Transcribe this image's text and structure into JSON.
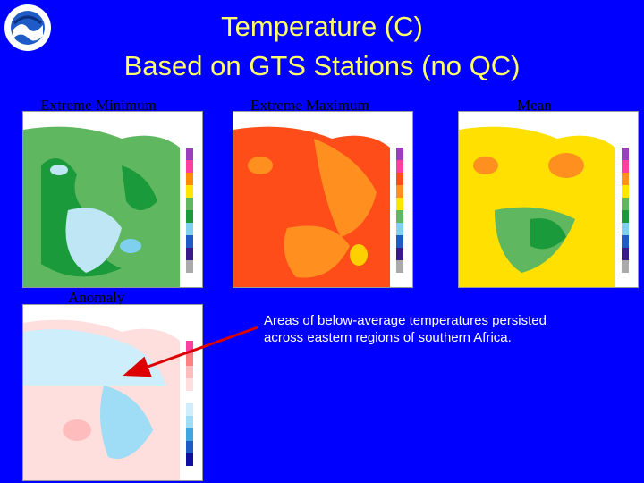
{
  "slide": {
    "title_line1": "Temperature (C)",
    "title_line2": "Based on GTS Stations (no QC)",
    "logo_icon": "noaa-logo-icon"
  },
  "panels": {
    "min_label": "Extreme Minimum",
    "max_label": "Extreme Maximum",
    "mean_label": "Mean",
    "anomaly_label": "Anomaly"
  },
  "caption": {
    "line1": "Areas of below-average temperatures persisted",
    "line2": "across eastern regions of southern Africa."
  },
  "colors": {
    "background": "#0000ff",
    "title": "#ffff66",
    "arrow": "#dd0000"
  }
}
